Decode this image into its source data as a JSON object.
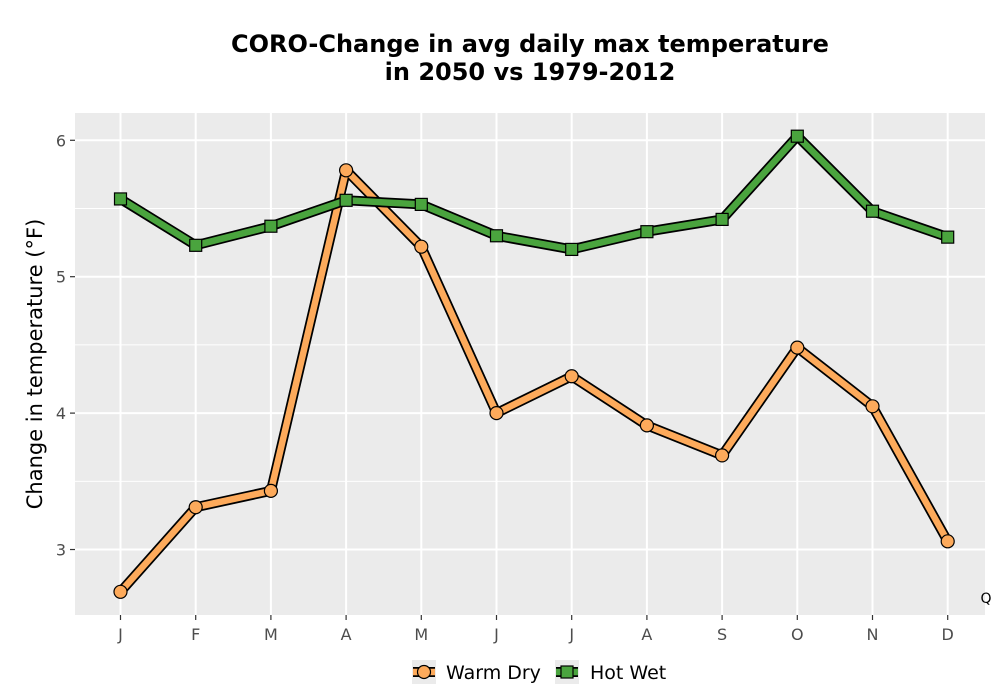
{
  "chart_data": {
    "type": "line",
    "title_lines": [
      "CORO-Change in avg daily max temperature",
      "in 2050 vs 1979-2012"
    ],
    "xlabel": "",
    "ylabel": "Change in temperature (°F)",
    "categories": [
      "J",
      "F",
      "M",
      "A",
      "M",
      "J",
      "J",
      "A",
      "S",
      "O",
      "N",
      "D"
    ],
    "ylim": [
      2.52,
      6.2
    ],
    "yticks": [
      3,
      4,
      5,
      6
    ],
    "grid": true,
    "legend_position": "bottom",
    "series": [
      {
        "name": "Warm Dry",
        "color": "#fdaa5b",
        "marker": "circle",
        "values": [
          2.69,
          3.31,
          3.43,
          5.78,
          5.22,
          4.0,
          4.27,
          3.91,
          3.69,
          4.48,
          4.05,
          3.06
        ]
      },
      {
        "name": "Hot Wet",
        "color": "#4aa43e",
        "marker": "square",
        "values": [
          5.57,
          5.23,
          5.37,
          5.56,
          5.53,
          5.3,
          5.2,
          5.33,
          5.42,
          6.03,
          5.48,
          5.29
        ]
      }
    ],
    "corner_label": "Q"
  }
}
